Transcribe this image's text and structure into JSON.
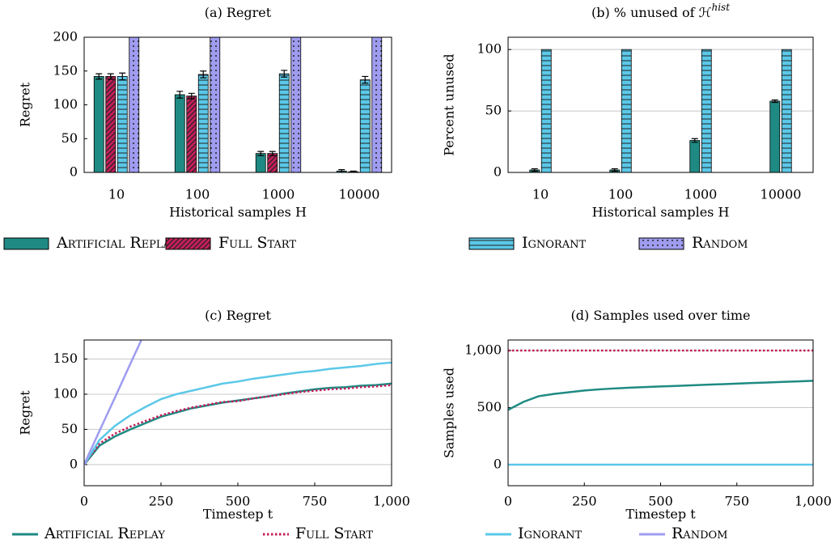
{
  "chart_data": [
    {
      "type": "bar",
      "title": "(a) Regret",
      "xlabel": "Historical samples H",
      "ylabel": "Regret",
      "categories": [
        "10",
        "100",
        "1000",
        "10000"
      ],
      "ylim": [
        0,
        200
      ],
      "yticks": [
        0,
        50,
        100,
        150,
        200
      ],
      "grid": false,
      "legend": "below",
      "series": [
        {
          "name": "Artificial Replay",
          "color": "#1f8a83",
          "pattern": "solid",
          "values": [
            142,
            115,
            28,
            2
          ],
          "errors": [
            4,
            5,
            3,
            2
          ]
        },
        {
          "name": "Full Start",
          "color": "#c41e5a",
          "pattern": "diagonal",
          "values": [
            142,
            113,
            28,
            1
          ],
          "errors": [
            4,
            4,
            3,
            1
          ]
        },
        {
          "name": "Ignorant",
          "color": "#5bc8e8",
          "pattern": "horizontal",
          "values": [
            142,
            145,
            146,
            137
          ],
          "errors": [
            5,
            5,
            5,
            5
          ]
        },
        {
          "name": "Random",
          "color": "#9f9cf0",
          "pattern": "dots",
          "values": [
            300,
            300,
            300,
            300
          ]
        }
      ]
    },
    {
      "type": "bar",
      "title": "(b) % unused of ℋ",
      "title_sup": "hist",
      "xlabel": "Historical samples H",
      "ylabel": "Percent unused",
      "categories": [
        "10",
        "100",
        "1000",
        "10000"
      ],
      "ylim": [
        0,
        110
      ],
      "yticks": [
        0,
        50,
        100
      ],
      "grid": true,
      "series": [
        {
          "name": "Artificial Replay",
          "color": "#1f8a83",
          "pattern": "solid",
          "values": [
            2,
            2,
            26,
            58
          ],
          "errors": [
            1,
            1,
            1.5,
            1
          ]
        },
        {
          "name": "Ignorant",
          "color": "#5bc8e8",
          "pattern": "horizontal",
          "values": [
            100,
            100,
            100,
            100
          ]
        }
      ]
    },
    {
      "type": "line",
      "title": "(c) Regret",
      "xlabel": "Timestep t",
      "ylabel": "Regret",
      "legend": "below",
      "x": [
        0,
        50,
        100,
        150,
        200,
        250,
        300,
        350,
        400,
        450,
        500,
        550,
        600,
        650,
        700,
        750,
        800,
        850,
        900,
        950,
        1000
      ],
      "xlim": [
        0,
        1000
      ],
      "xticks": [
        0,
        250,
        500,
        750,
        {
          "value": 1000,
          "label": "1,000"
        }
      ],
      "ylim": [
        -30,
        177
      ],
      "yticks": [
        0,
        50,
        100,
        150
      ],
      "grid": true,
      "series": [
        {
          "name": "Artificial Replay",
          "color": "#1f8a83",
          "dash": "solid",
          "values": [
            0,
            27,
            40,
            50,
            59,
            68,
            74,
            80,
            84,
            88,
            91,
            94,
            97,
            101,
            104,
            107,
            109,
            110,
            112,
            113,
            115
          ]
        },
        {
          "name": "Full Start",
          "color": "#c41e5a",
          "dash": "dotted",
          "values": [
            0,
            30,
            44,
            54,
            62,
            70,
            76,
            81,
            85,
            89,
            90,
            94,
            97,
            100,
            103,
            105,
            107,
            108,
            110,
            111,
            113
          ]
        },
        {
          "name": "Ignorant",
          "color": "#5bc8e8",
          "dash": "solid",
          "values": [
            0,
            35,
            55,
            70,
            82,
            93,
            100,
            105,
            110,
            115,
            118,
            122,
            125,
            128,
            131,
            133,
            136,
            138,
            140,
            143,
            145
          ]
        },
        {
          "name": "Random",
          "color": "#9f9cf0",
          "dash": "solid",
          "values": [
            0,
            48,
            95,
            143,
            190,
            null,
            null,
            null,
            null,
            null,
            null,
            null,
            null,
            null,
            null,
            null,
            null,
            null,
            null,
            null,
            null
          ]
        }
      ]
    },
    {
      "type": "line",
      "title": "(d) Samples used over time",
      "xlabel": "Timestep t",
      "ylabel": "Samples used",
      "x": [
        0,
        50,
        100,
        150,
        200,
        250,
        300,
        350,
        400,
        450,
        500,
        550,
        600,
        650,
        700,
        750,
        800,
        850,
        900,
        950,
        1000
      ],
      "xlim": [
        0,
        1000
      ],
      "xticks": [
        0,
        250,
        500,
        750,
        {
          "value": 1000,
          "label": "1,000"
        }
      ],
      "ylim": [
        -184,
        1092
      ],
      "yticks": [
        0,
        500,
        {
          "value": 1000,
          "label": "1,000"
        }
      ],
      "grid": true,
      "series": [
        {
          "name": "Artificial Replay",
          "color": "#1f8a83",
          "dash": "solid",
          "values": [
            480,
            550,
            600,
            620,
            635,
            650,
            660,
            668,
            675,
            680,
            685,
            690,
            695,
            700,
            705,
            710,
            715,
            720,
            725,
            730,
            735
          ]
        },
        {
          "name": "Full Start",
          "color": "#c41e5a",
          "dash": "dotted",
          "values": [
            1000,
            1000,
            1000,
            1000,
            1000,
            1000,
            1000,
            1000,
            1000,
            1000,
            1000,
            1000,
            1000,
            1000,
            1000,
            1000,
            1000,
            1000,
            1000,
            1000,
            1000
          ]
        },
        {
          "name": "Ignorant",
          "color": "#5bc8e8",
          "dash": "solid",
          "values": [
            0,
            0,
            0,
            0,
            0,
            0,
            0,
            0,
            0,
            0,
            0,
            0,
            0,
            0,
            0,
            0,
            0,
            0,
            0,
            0,
            0
          ]
        }
      ]
    }
  ]
}
